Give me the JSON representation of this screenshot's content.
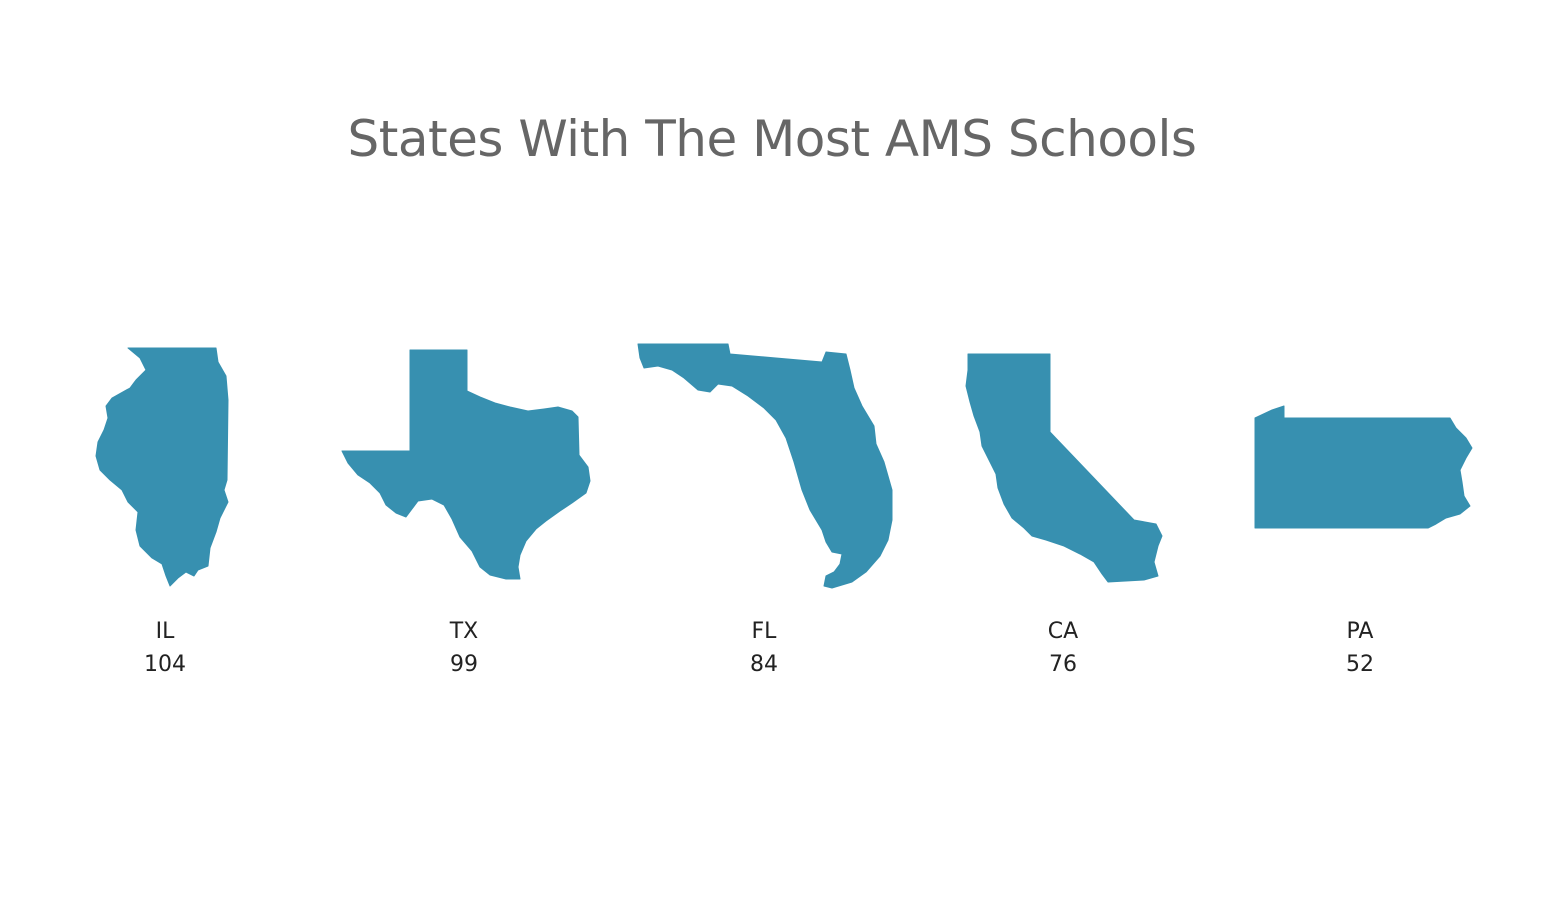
{
  "chart_data": {
    "type": "bar",
    "title": "States With The Most AMS Schools",
    "categories": [
      "IL",
      "TX",
      "FL",
      "CA",
      "PA"
    ],
    "values": [
      104,
      99,
      84,
      76,
      52
    ],
    "mark_color": "#3790b0"
  },
  "items": [
    {
      "label": "IL",
      "value": "104",
      "icon": "illinois-shape-icon"
    },
    {
      "label": "TX",
      "value": "99",
      "icon": "texas-shape-icon"
    },
    {
      "label": "FL",
      "value": "84",
      "icon": "florida-shape-icon"
    },
    {
      "label": "CA",
      "value": "76",
      "icon": "california-shape-icon"
    },
    {
      "label": "PA",
      "value": "52",
      "icon": "pennsylvania-shape-icon"
    }
  ]
}
